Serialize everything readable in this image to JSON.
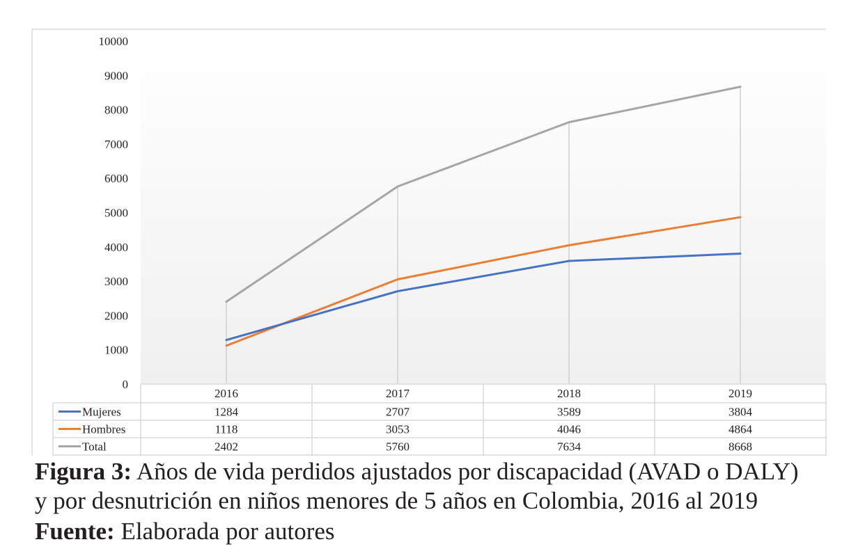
{
  "chart_data": {
    "type": "line",
    "categories": [
      "2016",
      "2017",
      "2018",
      "2019"
    ],
    "series": [
      {
        "name": "Mujeres",
        "values": [
          1284,
          2707,
          3589,
          3804
        ],
        "color": "#4472c4"
      },
      {
        "name": "Hombres",
        "values": [
          1118,
          3053,
          4046,
          4864
        ],
        "color": "#ed7d31"
      },
      {
        "name": "Total",
        "values": [
          2402,
          5760,
          7634,
          8668
        ],
        "color": "#a5a5a5"
      }
    ],
    "yticks": [
      0,
      1000,
      2000,
      3000,
      4000,
      5000,
      6000,
      7000,
      8000,
      9000,
      10000
    ],
    "ylim": [
      0,
      10000
    ],
    "data_table": true,
    "legend": "data-table"
  },
  "caption": {
    "figure_label": "Figura 3:",
    "figure_text_line1": " Años de vida perdidos ajustados por discapacidad (AVAD o DALY)",
    "figure_text_line2": "y por desnutrición en niños menores de 5 años en Colombia, 2016 al 2019",
    "source_label": "Fuente:",
    "source_text": " Elaborada por autores"
  }
}
